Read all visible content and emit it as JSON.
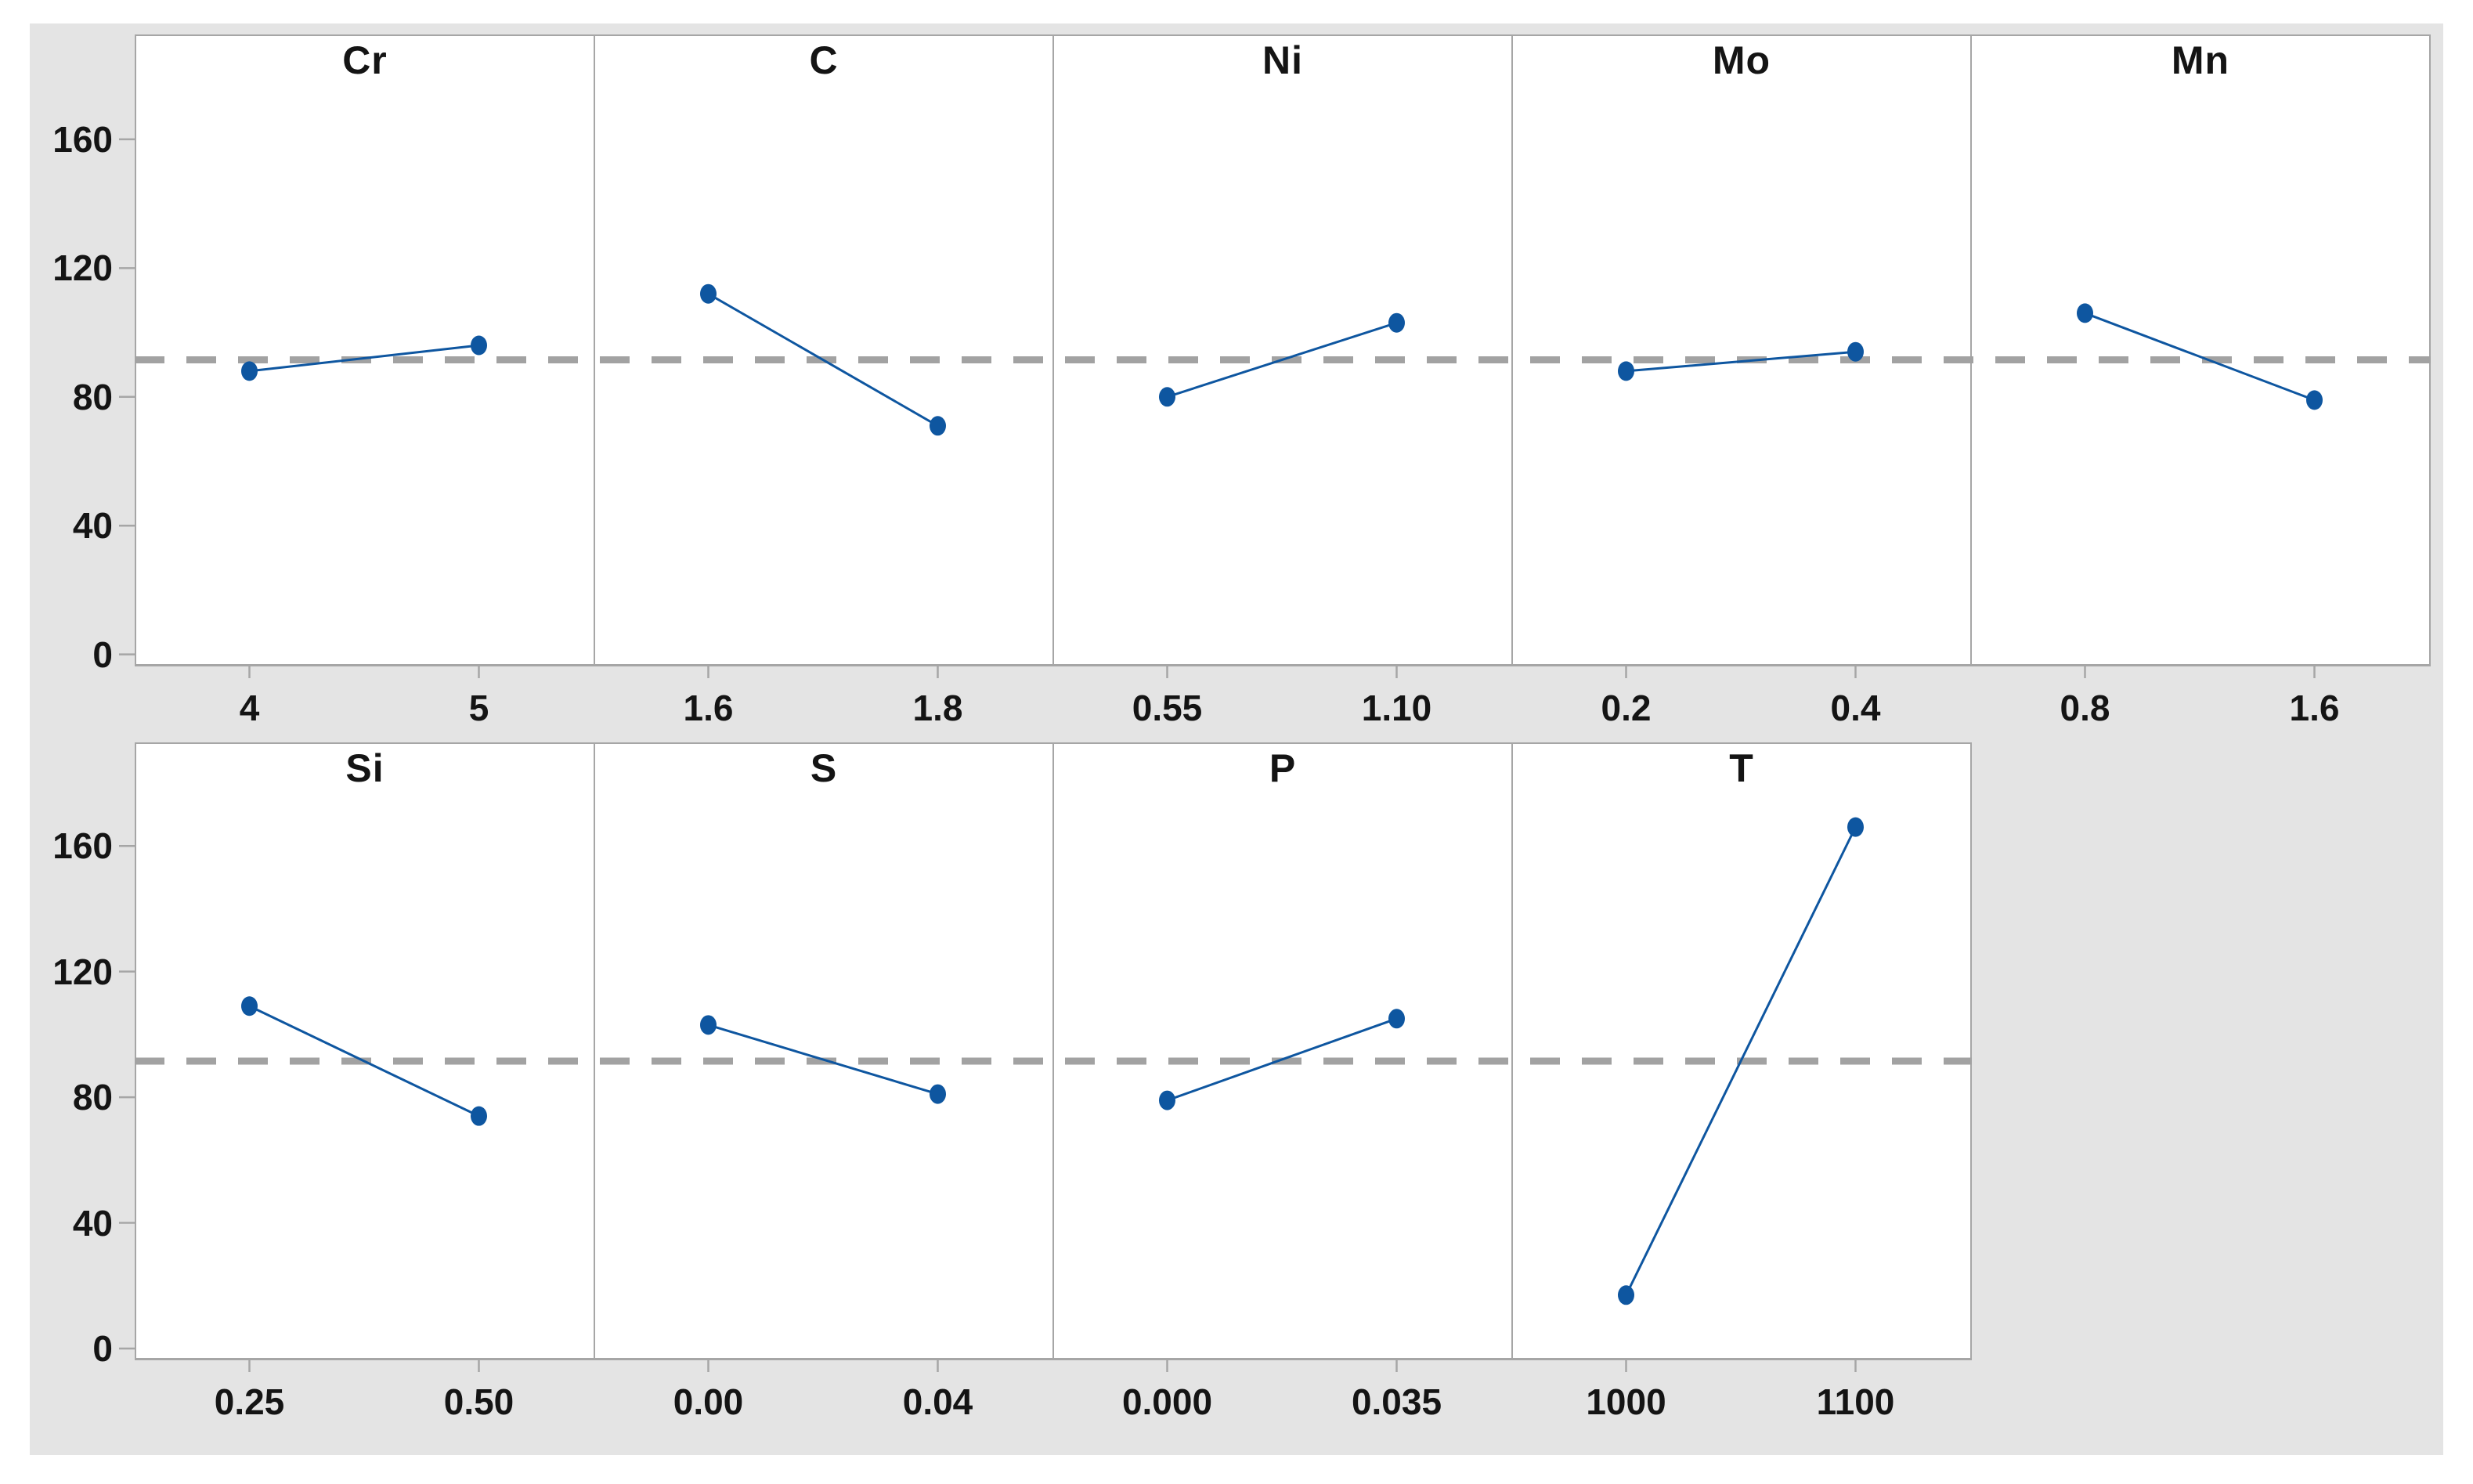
{
  "figure": {
    "kind": "main-effects-plot",
    "background_color": "#ffffff",
    "canvas_color": "#e4e4e4",
    "panel_color": "#ffffff",
    "panel_border_color": "#a6a6a6",
    "axis_tick_color": "#a6a6a6",
    "mean_line_color": "#a2a2a2",
    "series_color": "#0e56a0",
    "text_color": "#141414"
  },
  "chart_data": {
    "type": "line",
    "subtype": "main-effects-panels",
    "ylim": [
      -3,
      177
    ],
    "yticks": [
      0,
      40,
      80,
      120,
      160
    ],
    "ytick_labels": [
      "0",
      "40",
      "80",
      "120",
      "160"
    ],
    "grid": "off",
    "mean_reference_line": 91.5,
    "rows": [
      {
        "panels": [
          {
            "factor": "Cr",
            "levels": [
              "4",
              "5"
            ],
            "means": [
              88,
              96
            ]
          },
          {
            "factor": "C",
            "levels": [
              "1.6",
              "1.8"
            ],
            "means": [
              112,
              71
            ]
          },
          {
            "factor": "Ni",
            "levels": [
              "0.55",
              "1.10"
            ],
            "means": [
              80,
              103
            ]
          },
          {
            "factor": "Mo",
            "levels": [
              "0.2",
              "0.4"
            ],
            "means": [
              88,
              94
            ]
          },
          {
            "factor": "Mn",
            "levels": [
              "0.8",
              "1.6"
            ],
            "means": [
              106,
              79
            ]
          }
        ]
      },
      {
        "panels": [
          {
            "factor": "Si",
            "levels": [
              "0.25",
              "0.50"
            ],
            "means": [
              109,
              74
            ]
          },
          {
            "factor": "S",
            "levels": [
              "0.00",
              "0.04"
            ],
            "means": [
              103,
              81
            ]
          },
          {
            "factor": "P",
            "levels": [
              "0.000",
              "0.035"
            ],
            "means": [
              79,
              105
            ]
          },
          {
            "factor": "T",
            "levels": [
              "1000",
              "1100"
            ],
            "means": [
              17,
              166
            ]
          }
        ]
      }
    ]
  }
}
